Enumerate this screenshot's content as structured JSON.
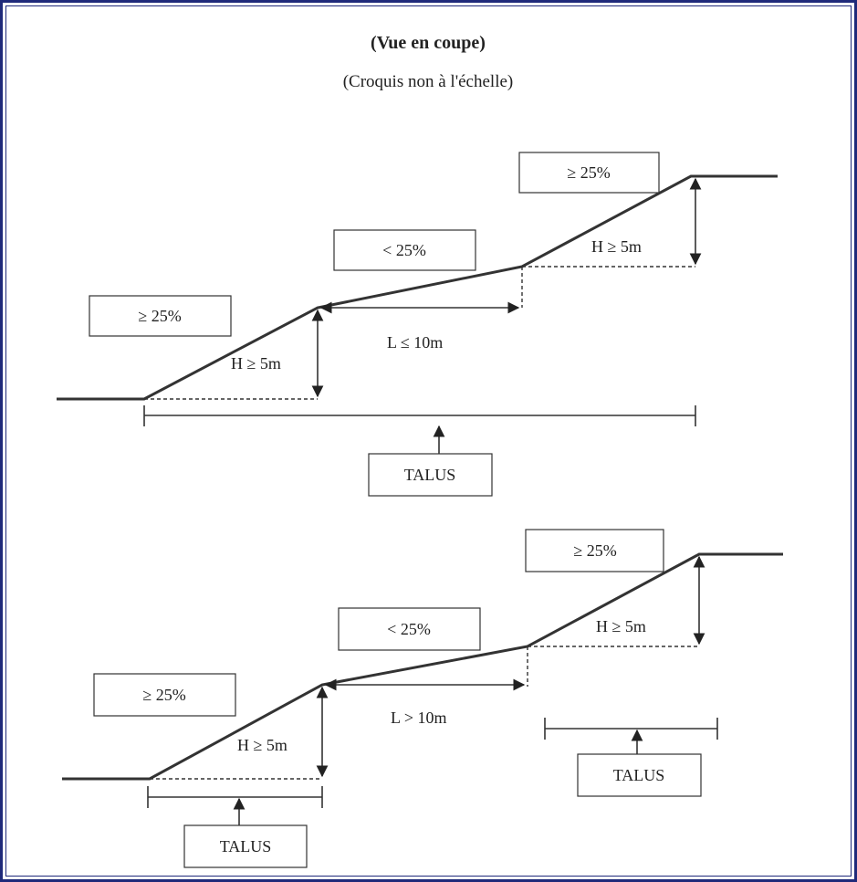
{
  "diagram": {
    "title": "(Vue en coupe)",
    "subtitle": "(Croquis non à l'échelle)",
    "top": {
      "slope_left": "≥ 25%",
      "slope_middle": "< 25%",
      "slope_right": "≥ 25%",
      "height_left": "H ≥ 5m",
      "height_right": "H ≥ 5m",
      "length": "L ≤ 10m",
      "talus": "TALUS"
    },
    "bottom": {
      "slope_left": "≥ 25%",
      "slope_middle": "< 25%",
      "slope_right": "≥ 25%",
      "height_left": "H ≥ 5m",
      "height_right": "H ≥ 5m",
      "length": "L > 10m",
      "talus_left": "TALUS",
      "talus_right": "TALUS"
    }
  },
  "colors": {
    "frame_border": "#1f2a7a",
    "ink": "#333333"
  }
}
